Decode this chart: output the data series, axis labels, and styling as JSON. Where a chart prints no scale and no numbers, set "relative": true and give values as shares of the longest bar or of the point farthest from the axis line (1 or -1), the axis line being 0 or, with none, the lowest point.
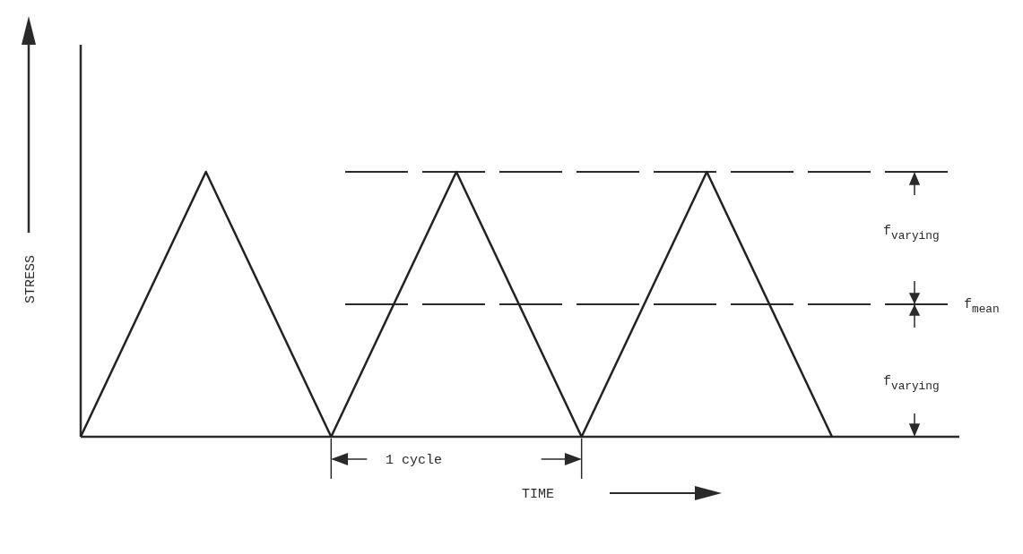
{
  "chart_data": {
    "type": "line",
    "relative": true,
    "xlabel": "TIME",
    "ylabel": "STRESS",
    "categories": [
      null,
      null,
      null,
      null,
      null,
      null,
      null
    ],
    "series": [
      {
        "color": "#222222",
        "values": [
          0,
          1,
          0,
          1,
          0,
          1,
          0
        ]
      }
    ],
    "ref_lines": [
      {
        "axis": "y",
        "value": 1,
        "line_style": "dashed"
      },
      {
        "axis": "y",
        "value": 0.5,
        "label": "f$_{mean}$",
        "line_style": "dashed"
      }
    ],
    "annotations": [
      "f$_{varying}$",
      "f$_{varying}$",
      "1 cycle"
    ]
  }
}
